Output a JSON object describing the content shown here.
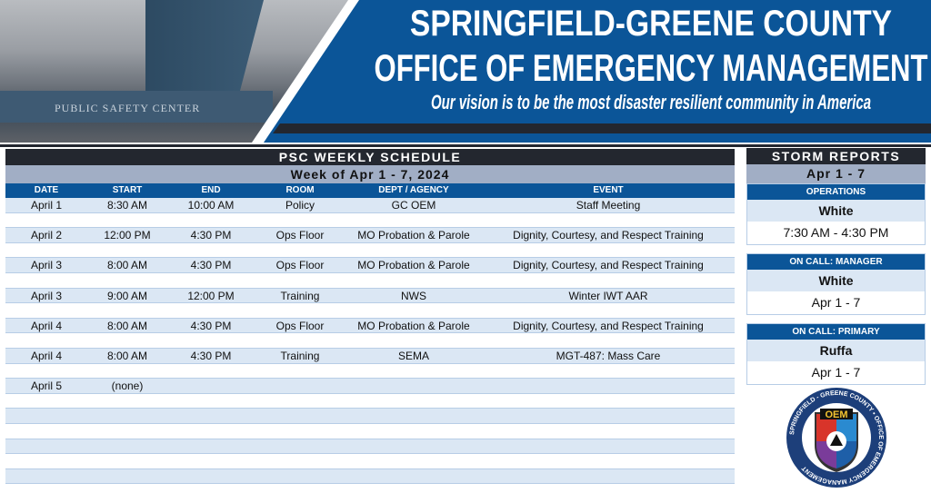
{
  "header": {
    "title_line1": "SPRINGFIELD-GREENE COUNTY",
    "title_line2": "OFFICE OF EMERGENCY MANAGEMENT",
    "tagline": "Our vision is to be the most disaster resilient community in America",
    "photo_sign": "PUBLIC SAFETY CENTER"
  },
  "schedule": {
    "title": "PSC WEEKLY SCHEDULE",
    "week": "Week of Apr 1 - 7, 2024",
    "columns": [
      "DATE",
      "START",
      "END",
      "ROOM",
      "DEPT / AGENCY",
      "EVENT"
    ],
    "rows": [
      [
        "April 1",
        "8:30 AM",
        "10:00 AM",
        "Policy",
        "GC OEM",
        "Staff Meeting"
      ],
      [
        "",
        "",
        "",
        "",
        "",
        ""
      ],
      [
        "April 2",
        "12:00 PM",
        "4:30 PM",
        "Ops Floor",
        "MO Probation & Parole",
        "Dignity, Courtesy, and Respect Training"
      ],
      [
        "",
        "",
        "",
        "",
        "",
        ""
      ],
      [
        "April 3",
        "8:00 AM",
        "4:30 PM",
        "Ops Floor",
        "MO Probation & Parole",
        "Dignity, Courtesy, and Respect Training"
      ],
      [
        "",
        "",
        "",
        "",
        "",
        ""
      ],
      [
        "April 3",
        "9:00 AM",
        "12:00 PM",
        "Training",
        "NWS",
        "Winter IWT AAR"
      ],
      [
        "",
        "",
        "",
        "",
        "",
        ""
      ],
      [
        "April 4",
        "8:00 AM",
        "4:30 PM",
        "Ops Floor",
        "MO Probation & Parole",
        "Dignity, Courtesy, and Respect Training"
      ],
      [
        "",
        "",
        "",
        "",
        "",
        ""
      ],
      [
        "April 4",
        "8:00 AM",
        "4:30 PM",
        "Training",
        "SEMA",
        "MGT-487: Mass Care"
      ],
      [
        "",
        "",
        "",
        "",
        "",
        ""
      ],
      [
        "April 5",
        "(none)",
        "",
        "",
        "",
        ""
      ],
      [
        "",
        "",
        "",
        "",
        "",
        ""
      ],
      [
        "",
        "",
        "",
        "",
        "",
        ""
      ],
      [
        "",
        "",
        "",
        "",
        "",
        ""
      ],
      [
        "",
        "",
        "",
        "",
        "",
        ""
      ],
      [
        "",
        "",
        "",
        "",
        "",
        ""
      ],
      [
        "",
        "",
        "",
        "",
        "",
        ""
      ]
    ]
  },
  "storm": {
    "title": "STORM REPORTS",
    "range": "Apr 1 - 7",
    "cards": [
      {
        "label": "OPERATIONS",
        "name": "White",
        "value": "7:30 AM - 4:30 PM"
      },
      {
        "label": "ON CALL:  MANAGER",
        "name": "White",
        "value": "Apr 1 - 7"
      },
      {
        "label": "ON CALL:  PRIMARY",
        "name": "Ruffa",
        "value": "Apr 1 - 7"
      }
    ]
  },
  "logo": {
    "ring_text": "SPRINGFIELD - GREENE COUNTY • OFFICE OF EMERGENCY MANAGEMENT",
    "center": "OEM"
  },
  "colors": {
    "brand_blue": "#0b5598",
    "dark": "#23272f",
    "row_tint": "#dbe7f4",
    "gray_band": "#a1aec5"
  }
}
